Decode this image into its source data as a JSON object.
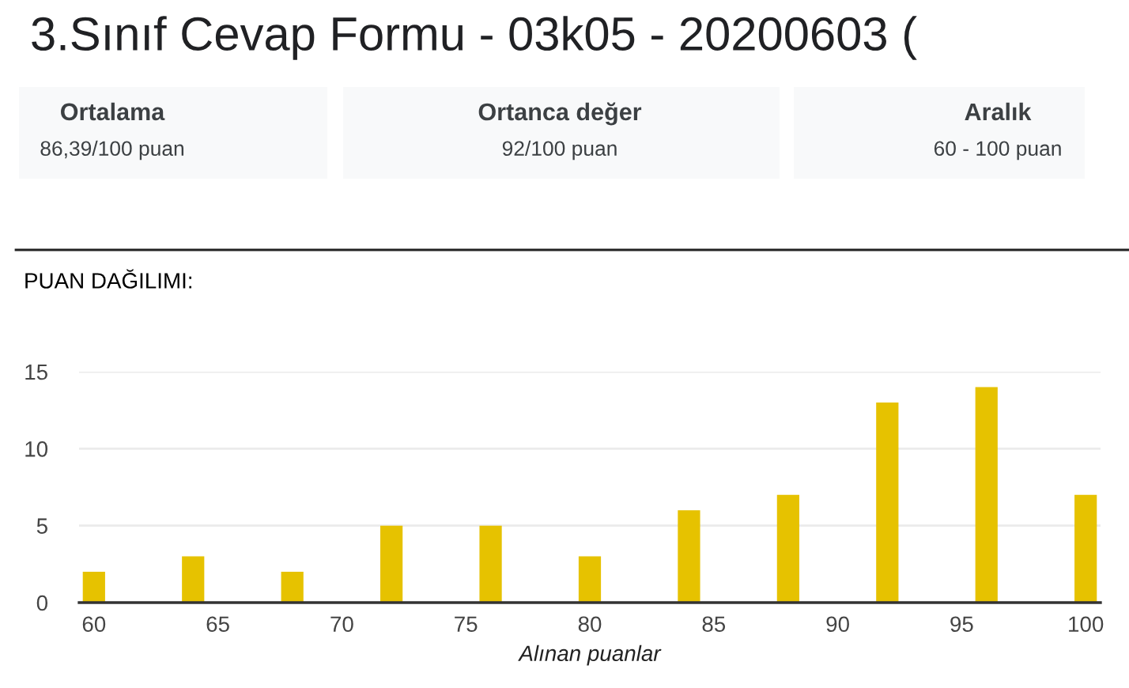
{
  "chart_data": [
    {
      "type": "other",
      "title": "3.Sınıf Cevap Formu - 03k05 - 20200603 (",
      "annotations": [
        "Ortalama",
        "86,39/100 puan",
        "Ortanca değer",
        "92/100 puan",
        "Aralık",
        "60 - 100 puan"
      ]
    },
    {
      "type": "bar",
      "title": "PUAN DAĞILIMI:",
      "xlabel": "Alınan puanlar",
      "x": [
        60,
        64,
        68,
        72,
        76,
        80,
        84,
        88,
        92,
        96,
        100
      ],
      "values": [
        2,
        3,
        2,
        5,
        5,
        3,
        6,
        7,
        13,
        14,
        7
      ],
      "color": "#e6c200",
      "xlim": [
        59.4,
        100.6
      ],
      "xticks": [
        60,
        65,
        70,
        75,
        80,
        85,
        90,
        95,
        100
      ],
      "ylim": [
        0,
        15
      ],
      "yticks": [
        0,
        5,
        10,
        15
      ],
      "grid": "y"
    }
  ]
}
